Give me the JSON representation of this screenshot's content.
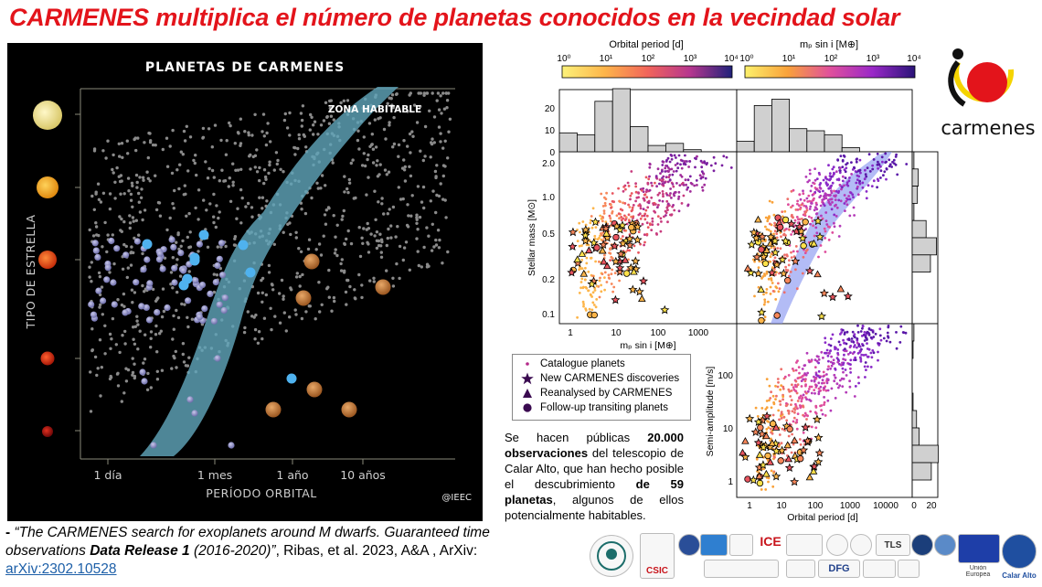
{
  "title": "CARMENES multiplica el número de planetas conocidos en la vecindad solar",
  "left_panel": {
    "heading": "PLANETAS DE CARMENES",
    "zone_label": "ZONA HABITABLE",
    "y_axis_label": "TIPO DE ESTRELLA",
    "x_axis_label": "PERÍODO ORBITAL",
    "x_ticks": [
      "1 día",
      "1 mes",
      "1 año",
      "10 años"
    ],
    "credit": "@IEEC"
  },
  "colorbars": {
    "left": {
      "label": "Orbital period [d]",
      "ticks": [
        "10⁰",
        "10¹",
        "10²",
        "10³",
        "10⁴"
      ]
    },
    "right": {
      "label": "mₚ sin i [M⊕]",
      "ticks": [
        "10⁰",
        "10¹",
        "10²",
        "10³",
        "10⁴"
      ]
    }
  },
  "chart_data": [
    {
      "type": "bar",
      "panel": "histogram-mass",
      "yticks": [
        "0",
        "10",
        "20"
      ],
      "values": [
        9,
        8,
        24,
        30,
        12,
        3,
        4,
        1,
        0,
        0
      ]
    },
    {
      "type": "bar",
      "panel": "histogram-period",
      "values": [
        5,
        22,
        25,
        11,
        10,
        8,
        2,
        0,
        0,
        0
      ]
    },
    {
      "type": "scatter",
      "panel": "stellar-mass-vs-msini",
      "xlabel": "mₚ sin i [M⊕]",
      "ylabel": "Stellar mass [M⊙]",
      "x_ticks": [
        "1",
        "10",
        "100",
        "1000"
      ],
      "y_ticks": [
        "2.0",
        "1.0",
        "0.5",
        "0.2",
        "0.1"
      ]
    },
    {
      "type": "scatter",
      "panel": "stellar-mass-vs-period"
    },
    {
      "type": "scatter",
      "panel": "semi-amplitude-vs-period",
      "xlabel": "Orbital period [d]",
      "ylabel": "Semi-amplitude [m/s]",
      "x_ticks": [
        "1",
        "10",
        "100",
        "1000",
        "10000"
      ],
      "y_ticks": [
        "100",
        "10",
        "1"
      ]
    },
    {
      "type": "bar",
      "panel": "histogram-stellar-mass-right",
      "x_ticks": [
        "0",
        "20"
      ],
      "values": [
        2,
        7,
        6,
        2,
        16,
        28,
        21,
        0,
        0,
        0
      ]
    },
    {
      "type": "bar",
      "panel": "histogram-semi-amplitude-right",
      "x_ticks": [
        "0",
        "20"
      ],
      "values": [
        2,
        1,
        0,
        0,
        1,
        5,
        8,
        30,
        22,
        0
      ]
    }
  ],
  "legend": {
    "items": [
      "Catalogue planets",
      "New CARMENES discoveries",
      "Reanalysed by CARMENES",
      "Follow-up transiting planets"
    ]
  },
  "description": {
    "p1": "Se hacen públicas ",
    "b1": "20.000 observaciones",
    "p2": " del telescopio de Calar Alto, que han hecho posible el descubrimiento ",
    "b2": "de 59 planetas",
    "p3": ", algunos de ellos potencialmente habitables."
  },
  "caption": {
    "dash": "- ",
    "q1": "“The CARMENES search for exoplanets around M dwarfs. Guaranteed time observations ",
    "bold": "Data Release 1",
    "q2": " (2016-2020)”",
    "authors": ", Ribas, et al. 2023, A&A , ArXiv: ",
    "link": "arXiv:2302.10528"
  },
  "logo_text": "carmenes",
  "sponsor_labels": [
    "CSIC",
    "ICE",
    "DFG",
    "TLS",
    "Calar Alto",
    "Unión Europea"
  ],
  "colors": {
    "title": "#e3141b",
    "zone": "#5fa3b8",
    "bg_dark": "#000000",
    "habitable_zone_chart": "#8090f0"
  }
}
